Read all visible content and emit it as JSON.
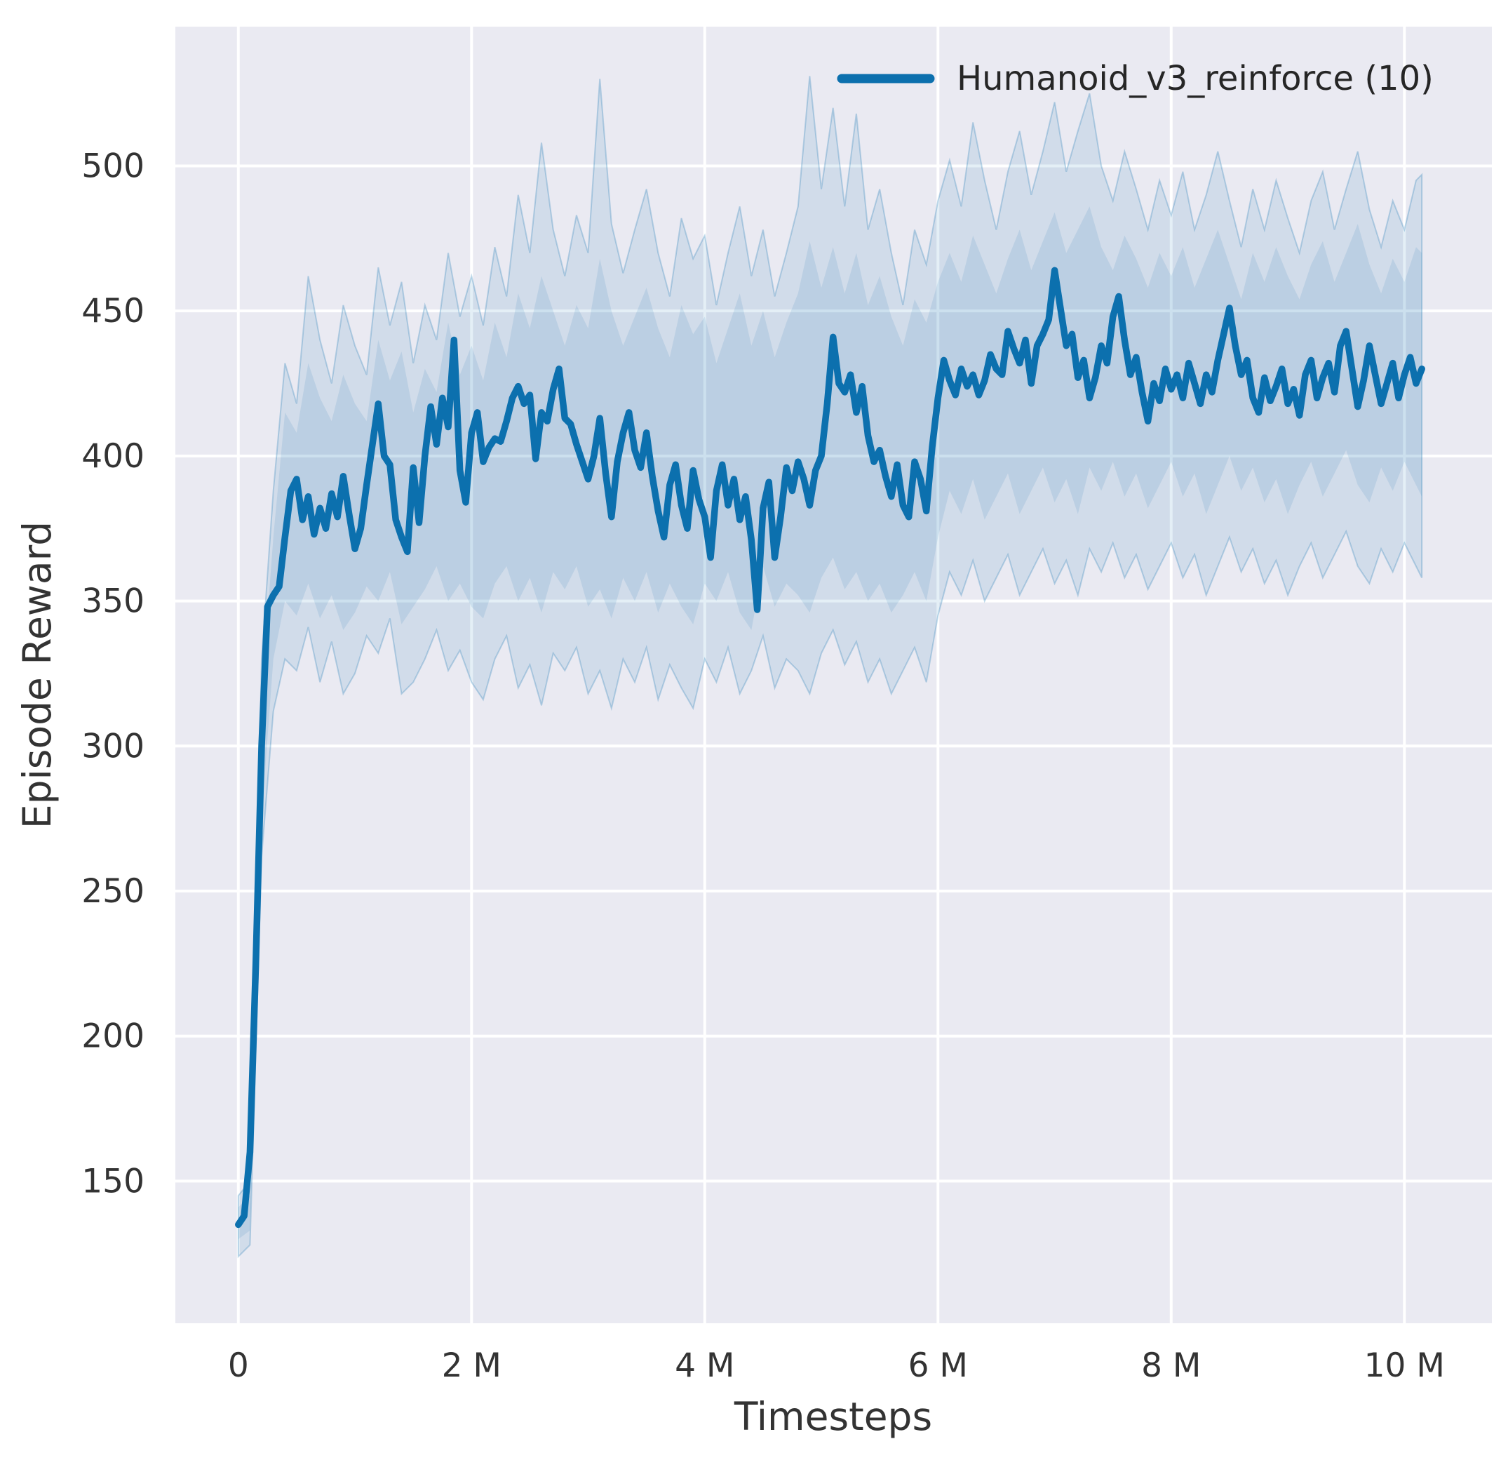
{
  "figure": {
    "background": "#ffffff",
    "plot_background": "#eaeaf2",
    "grid_color": "#ffffff",
    "text_color": "#333333",
    "accent_line_color": "#0c70ae",
    "band_fill_color": "#0c70ae",
    "band_opacity_outer": 0.11,
    "band_opacity_inner": 0.11
  },
  "chart_data": {
    "type": "line",
    "title": "",
    "xlabel": "Timesteps",
    "ylabel": "Episode Reward",
    "x_unit": "millions of timesteps",
    "xlim": [
      -0.54,
      10.75
    ],
    "ylim": [
      101,
      548
    ],
    "grid": true,
    "legend_position": "upper right",
    "x_ticks": [
      {
        "t": 0,
        "label": "0"
      },
      {
        "t": 2,
        "label": "2 M"
      },
      {
        "t": 4,
        "label": "4 M"
      },
      {
        "t": 6,
        "label": "6 M"
      },
      {
        "t": 8,
        "label": "8 M"
      },
      {
        "t": 10,
        "label": "10 M"
      }
    ],
    "y_ticks": [
      {
        "v": 150,
        "label": "150"
      },
      {
        "v": 200,
        "label": "200"
      },
      {
        "v": 250,
        "label": "250"
      },
      {
        "v": 300,
        "label": "300"
      },
      {
        "v": 350,
        "label": "350"
      },
      {
        "v": 400,
        "label": "400"
      },
      {
        "v": 450,
        "label": "450"
      },
      {
        "v": 500,
        "label": "500"
      }
    ],
    "series": [
      {
        "name": "Humanoid_v3_reinforce (10)",
        "n_seeds": 10,
        "x_start": 0,
        "x_step": 0.05,
        "x_end": 10.15,
        "mean": [
          135,
          138,
          160,
          225,
          300,
          348,
          352,
          355,
          372,
          388,
          392,
          378,
          386,
          373,
          382,
          375,
          387,
          379,
          393,
          380,
          368,
          375,
          390,
          404,
          418,
          400,
          397,
          378,
          372,
          367,
          396,
          377,
          400,
          417,
          404,
          420,
          410,
          440,
          395,
          384,
          408,
          415,
          398,
          403,
          406,
          405,
          412,
          420,
          424,
          418,
          421,
          399,
          415,
          412,
          423,
          430,
          413,
          411,
          404,
          398,
          392,
          400,
          413,
          394,
          379,
          398,
          408,
          415,
          402,
          396,
          408,
          393,
          381,
          372,
          390,
          397,
          383,
          375,
          395,
          385,
          379,
          365,
          388,
          397,
          383,
          392,
          378,
          386,
          371,
          347,
          382,
          391,
          365,
          379,
          396,
          388,
          398,
          392,
          383,
          395,
          400,
          418,
          441,
          425,
          422,
          428,
          415,
          424,
          407,
          398,
          402,
          393,
          386,
          397,
          383,
          379,
          398,
          392,
          381,
          403,
          420,
          433,
          426,
          421,
          430,
          424,
          428,
          421,
          426,
          435,
          430,
          428,
          443,
          437,
          432,
          440,
          425,
          438,
          442,
          447,
          464,
          451,
          438,
          442,
          427,
          433,
          420,
          427,
          438,
          432,
          448,
          455,
          440,
          428,
          434,
          422,
          412,
          425,
          419,
          430,
          423,
          428,
          420,
          432,
          425,
          418,
          428,
          422,
          433,
          442,
          451,
          438,
          428,
          433,
          420,
          415,
          427,
          419,
          424,
          430,
          418,
          423,
          414,
          428,
          433,
          420,
          427,
          432,
          422,
          438,
          443,
          430,
          417,
          426,
          438,
          428,
          418,
          425,
          432,
          420,
          428,
          434,
          425,
          430
        ],
        "band_inner": {
          "x_start": 0,
          "x_step": 0.1,
          "low": [
            130,
            133,
            275,
            330,
            350,
            345,
            356,
            344,
            352,
            340,
            346,
            355,
            350,
            360,
            342,
            348,
            354,
            362,
            350,
            356,
            348,
            344,
            356,
            362,
            350,
            358,
            346,
            360,
            354,
            362,
            348,
            354,
            344,
            358,
            350,
            360,
            346,
            356,
            348,
            342,
            356,
            350,
            360,
            346,
            340,
            362,
            348,
            356,
            352,
            346,
            358,
            365,
            354,
            360,
            350,
            356,
            346,
            352,
            360,
            350,
            372,
            388,
            380,
            392,
            378,
            386,
            394,
            380,
            388,
            396,
            384,
            392,
            380,
            396,
            388,
            398,
            386,
            394,
            382,
            390,
            398,
            386,
            394,
            380,
            390,
            400,
            388,
            396,
            384,
            392,
            380,
            390,
            398,
            386,
            394,
            402,
            390,
            384,
            396,
            388,
            398,
            390,
            386
          ],
          "high": [
            141,
            145,
            318,
            372,
            415,
            408,
            432,
            420,
            412,
            428,
            418,
            412,
            440,
            426,
            436,
            415,
            430,
            422,
            446,
            428,
            438,
            426,
            446,
            434,
            456,
            444,
            462,
            450,
            438,
            452,
            444,
            468,
            450,
            438,
            448,
            458,
            444,
            434,
            452,
            442,
            448,
            432,
            444,
            456,
            438,
            450,
            434,
            446,
            456,
            474,
            458,
            472,
            456,
            470,
            452,
            462,
            448,
            438,
            454,
            446,
            460,
            470,
            460,
            476,
            466,
            456,
            468,
            478,
            464,
            474,
            484,
            470,
            478,
            486,
            472,
            464,
            476,
            468,
            458,
            470,
            462,
            472,
            458,
            468,
            478,
            466,
            454,
            470,
            460,
            472,
            462,
            454,
            466,
            474,
            460,
            470,
            480,
            466,
            456,
            468,
            460,
            472,
            470
          ]
        },
        "band_outer": {
          "x_start": 0,
          "x_step": 0.1,
          "low": [
            124,
            128,
            262,
            312,
            330,
            326,
            341,
            322,
            336,
            318,
            325,
            338,
            332,
            344,
            318,
            322,
            330,
            340,
            326,
            333,
            322,
            316,
            330,
            338,
            320,
            328,
            314,
            332,
            326,
            334,
            318,
            326,
            313,
            330,
            322,
            334,
            316,
            328,
            320,
            313,
            330,
            322,
            334,
            318,
            326,
            338,
            320,
            330,
            326,
            318,
            332,
            340,
            328,
            336,
            322,
            330,
            318,
            326,
            334,
            322,
            345,
            360,
            352,
            364,
            350,
            358,
            366,
            352,
            360,
            368,
            356,
            364,
            352,
            368,
            360,
            370,
            358,
            366,
            354,
            362,
            370,
            358,
            366,
            352,
            362,
            372,
            360,
            368,
            356,
            364,
            352,
            362,
            370,
            358,
            366,
            374,
            362,
            356,
            368,
            360,
            370,
            362,
            358
          ],
          "high": [
            145,
            150,
            330,
            388,
            432,
            418,
            462,
            440,
            425,
            452,
            438,
            428,
            465,
            445,
            460,
            432,
            452,
            440,
            470,
            448,
            462,
            445,
            472,
            455,
            490,
            470,
            508,
            478,
            462,
            483,
            470,
            530,
            480,
            463,
            478,
            492,
            470,
            455,
            482,
            468,
            476,
            452,
            470,
            486,
            462,
            478,
            455,
            470,
            486,
            531,
            492,
            520,
            486,
            518,
            478,
            492,
            470,
            452,
            478,
            466,
            488,
            502,
            486,
            515,
            495,
            478,
            498,
            512,
            490,
            505,
            522,
            498,
            512,
            525,
            500,
            488,
            505,
            492,
            478,
            495,
            483,
            498,
            478,
            490,
            505,
            488,
            472,
            492,
            478,
            495,
            482,
            470,
            488,
            498,
            478,
            492,
            505,
            485,
            472,
            488,
            478,
            495,
            497
          ]
        }
      }
    ]
  }
}
